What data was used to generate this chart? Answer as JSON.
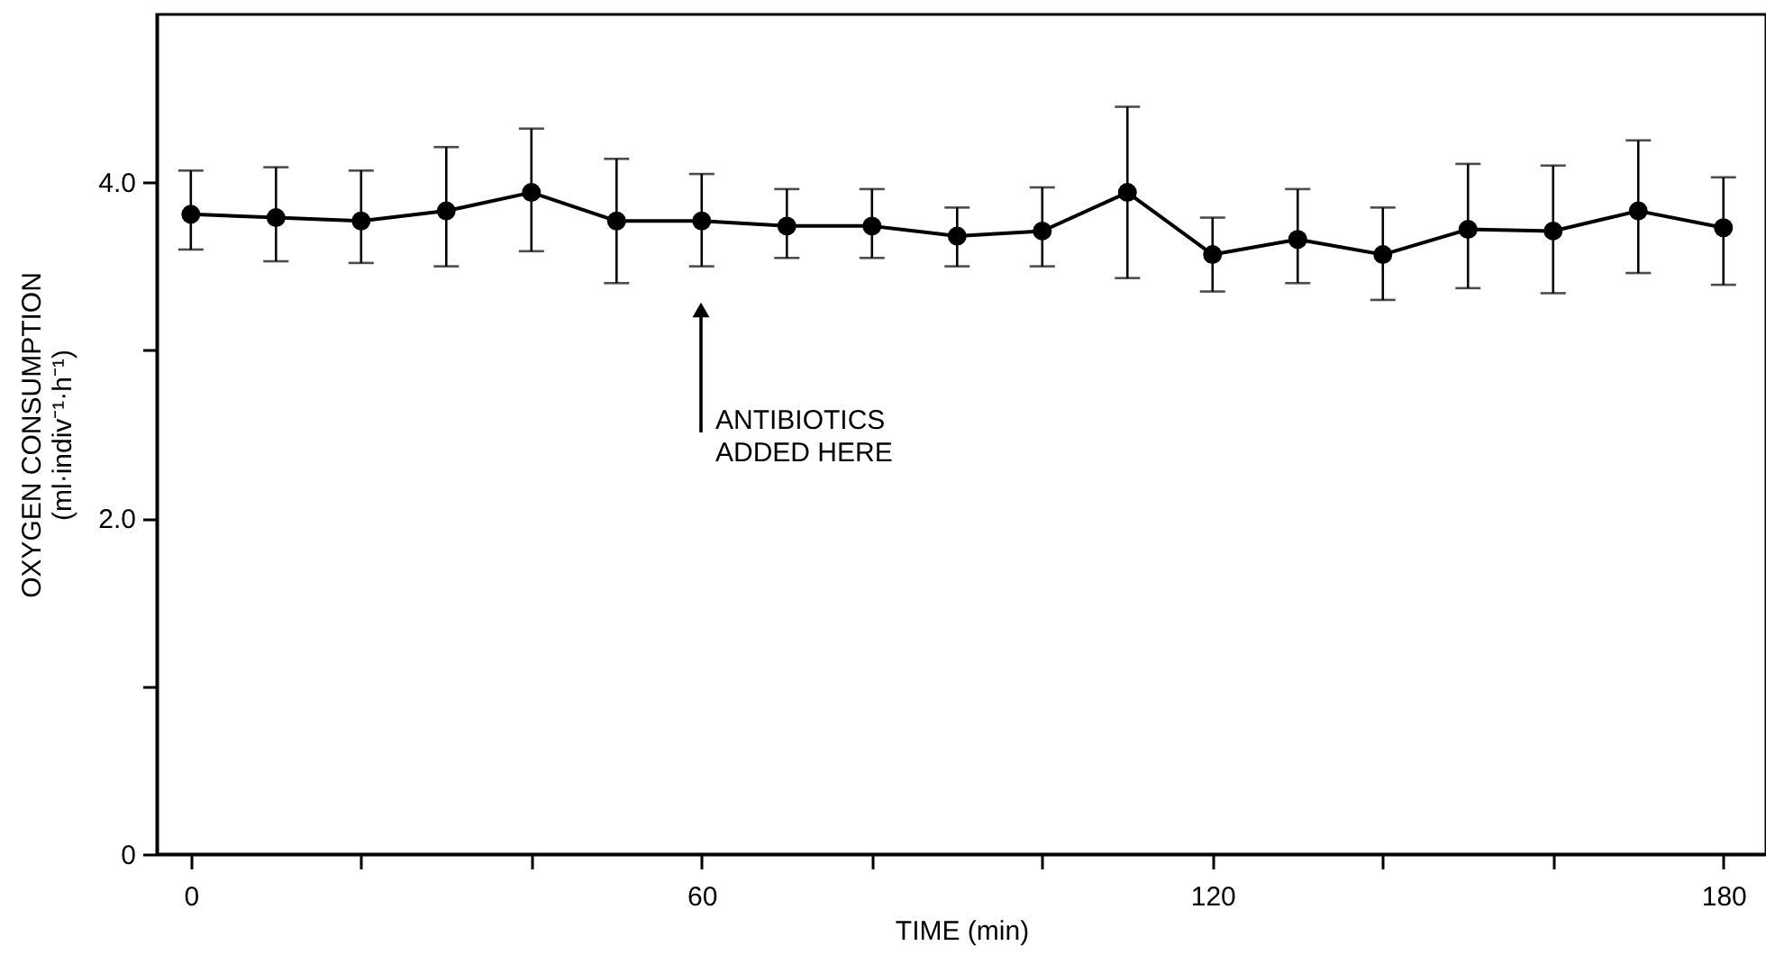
{
  "chart_data": {
    "type": "line",
    "xlabel": "TIME  (min)",
    "ylabel": "OXYGEN CONSUMPTION\n(ml·indiv⁻¹·h⁻¹)",
    "x": [
      0,
      10,
      20,
      30,
      40,
      50,
      60,
      70,
      80,
      90,
      100,
      110,
      120,
      130,
      140,
      150,
      160,
      170,
      180
    ],
    "series": [
      {
        "color": "#000000",
        "values": [
          3.81,
          3.79,
          3.77,
          3.83,
          3.94,
          3.77,
          3.77,
          3.74,
          3.74,
          3.68,
          3.71,
          3.94,
          3.57,
          3.66,
          3.57,
          3.72,
          3.71,
          3.83,
          3.73
        ],
        "errors": [
          [
            3.6,
            4.07
          ],
          [
            3.53,
            4.09
          ],
          [
            3.52,
            4.07
          ],
          [
            3.5,
            4.21
          ],
          [
            3.59,
            4.32
          ],
          [
            3.4,
            4.14
          ],
          [
            3.5,
            4.05
          ],
          [
            3.55,
            3.96
          ],
          [
            3.55,
            3.96
          ],
          [
            3.5,
            3.85
          ],
          [
            3.5,
            3.97
          ],
          [
            3.43,
            4.45
          ],
          [
            3.35,
            3.79
          ],
          [
            3.4,
            3.96
          ],
          [
            3.3,
            3.85
          ],
          [
            3.37,
            4.11
          ],
          [
            3.34,
            4.1
          ],
          [
            3.46,
            4.25
          ],
          [
            3.39,
            4.03
          ]
        ]
      }
    ],
    "xlim": [
      -4,
      185
    ],
    "xticks": [
      0,
      {
        "value": 20,
        "label": null
      },
      {
        "value": 40,
        "label": null
      },
      60,
      {
        "value": 80,
        "label": null
      },
      {
        "value": 100,
        "label": null
      },
      120,
      {
        "value": 140,
        "label": null
      },
      {
        "value": 160,
        "label": null
      },
      180
    ],
    "ylim": [
      0,
      5
    ],
    "yticks": [
      0,
      {
        "value": 1,
        "label": null
      },
      {
        "value": 2,
        "label": "2.0"
      },
      {
        "value": 3,
        "label": null
      },
      {
        "value": 4,
        "label": "4.0"
      }
    ],
    "annotations": [
      "ANTIBIOTICS\nADDED HERE"
    ],
    "grid": false,
    "marker": "circle",
    "line_style": "solid"
  }
}
